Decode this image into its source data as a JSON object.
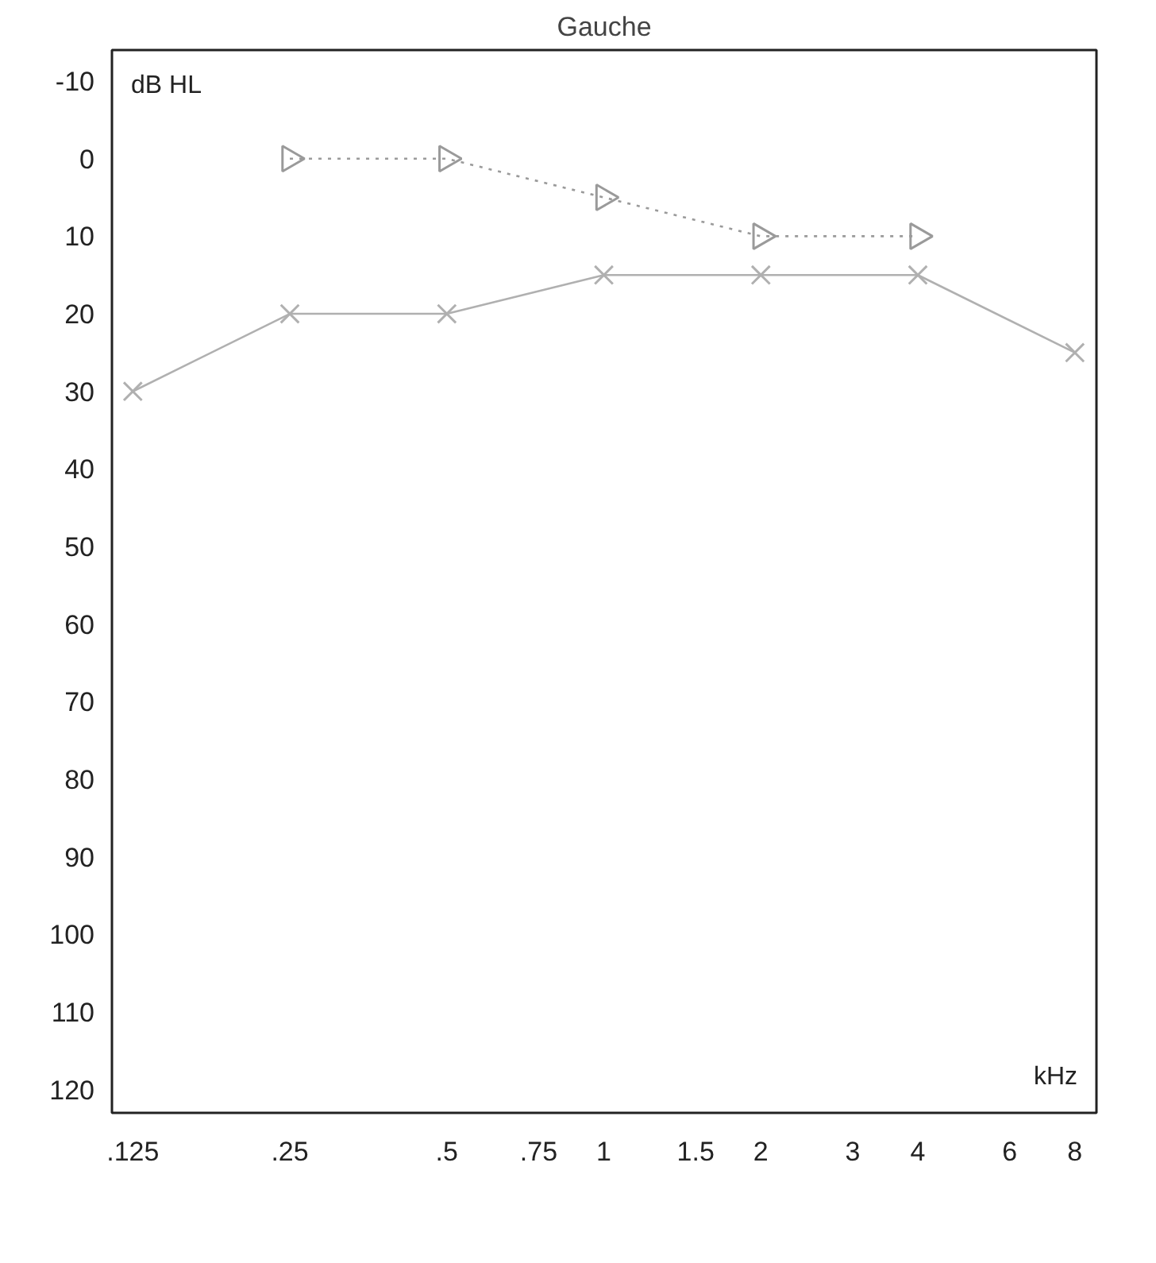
{
  "chart_data": {
    "type": "line",
    "title": "Gauche",
    "ylabel": "dB HL",
    "xlabel": "kHz",
    "log": "x",
    "grid": false,
    "xlim": [
      0.114,
      8.8
    ],
    "ylim": [
      123,
      -14
    ],
    "xticks": [
      {
        "value": 0.125,
        "label": ".125"
      },
      {
        "value": 0.25,
        "label": ".25"
      },
      {
        "value": 0.5,
        "label": ".5"
      },
      {
        "value": 0.75,
        "label": ".75"
      },
      1,
      {
        "value": 1.5,
        "label": "1.5"
      },
      2,
      3,
      4,
      6,
      8
    ],
    "yticks": [
      -10,
      0,
      10,
      20,
      30,
      40,
      50,
      60,
      70,
      80,
      90,
      100,
      110,
      120
    ],
    "series": [
      {
        "color": "#9a9a9a",
        "x": [
          0.25,
          0.5,
          1,
          2,
          4
        ],
        "values": [
          0,
          0,
          5,
          10,
          10
        ],
        "marker": "triangle",
        "line_style": "dotted"
      },
      {
        "color": "#b0b0b0",
        "x": [
          0.125,
          0.25,
          0.5,
          1,
          2,
          4,
          8
        ],
        "values": [
          30,
          20,
          20,
          15,
          15,
          15,
          25
        ],
        "marker": "cross",
        "line_style": "solid"
      }
    ]
  }
}
